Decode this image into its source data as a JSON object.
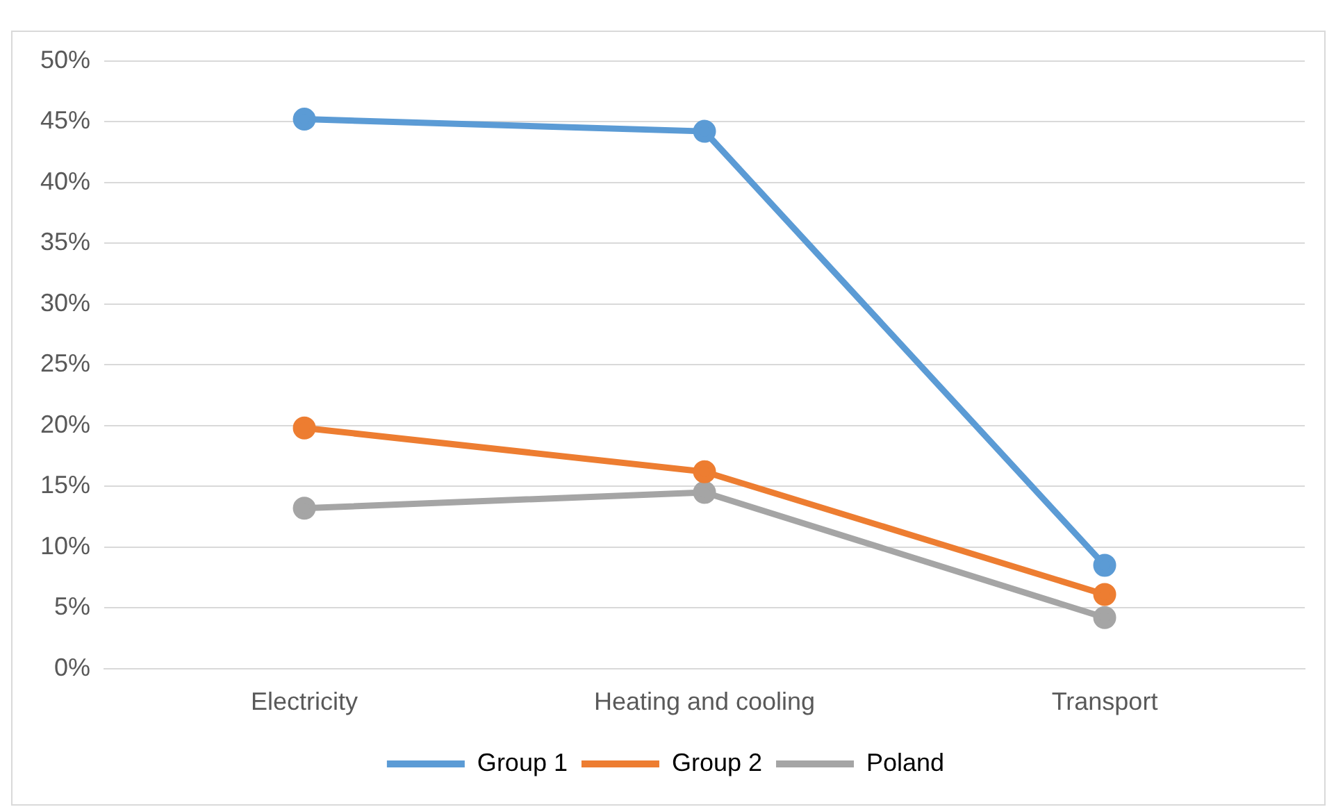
{
  "chart_data": {
    "type": "line",
    "categories": [
      "Electricity",
      "Heating and cooling",
      "Transport"
    ],
    "series": [
      {
        "name": "Group 1",
        "color": "#5b9bd5",
        "values": [
          45.2,
          44.2,
          8.5
        ]
      },
      {
        "name": "Group 2",
        "color": "#ed7d31",
        "values": [
          19.8,
          16.2,
          6.1
        ]
      },
      {
        "name": "Poland",
        "color": "#a5a5a5",
        "values": [
          13.2,
          14.5,
          4.2
        ]
      }
    ],
    "ylim": [
      0,
      50
    ],
    "yticks": [
      {
        "value": 0,
        "label": "0%"
      },
      {
        "value": 5,
        "label": "5%"
      },
      {
        "value": 10,
        "label": "10%"
      },
      {
        "value": 15,
        "label": "15%"
      },
      {
        "value": 20,
        "label": "20%"
      },
      {
        "value": 25,
        "label": "25%"
      },
      {
        "value": 30,
        "label": "30%"
      },
      {
        "value": 35,
        "label": "35%"
      },
      {
        "value": 40,
        "label": "40%"
      },
      {
        "value": 45,
        "label": "45%"
      },
      {
        "value": 50,
        "label": "50%"
      }
    ],
    "grid": "y",
    "legend": "bottom",
    "marker": "circle",
    "line_style": "solid"
  }
}
